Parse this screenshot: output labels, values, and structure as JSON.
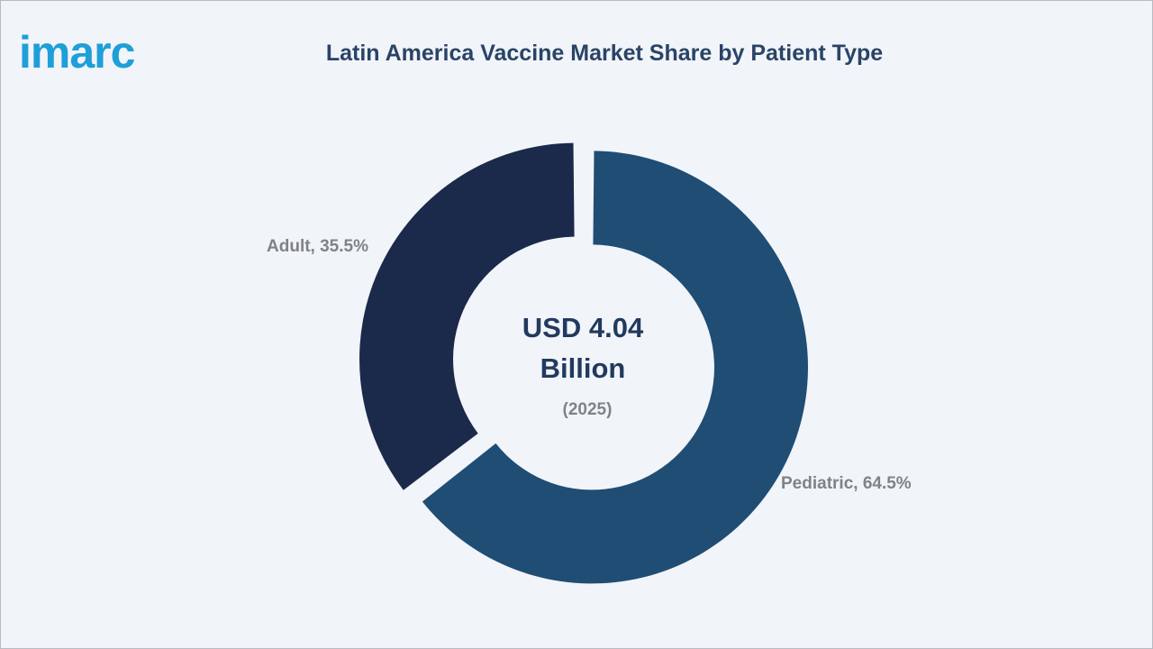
{
  "brand": {
    "logo_text": "imarc",
    "logo_color": "#1f9fd8"
  },
  "chart_data": {
    "type": "pie",
    "title": "Latin America Vaccine Market Share by Patient Type",
    "categories": [
      "Pediatric",
      "Adult"
    ],
    "values": [
      64.5,
      35.5
    ],
    "unit": "%",
    "labels": [
      "Pediatric, 64.5%",
      "Adult, 35.5%"
    ],
    "colors": [
      "#1f4d74",
      "#1b2a4a"
    ],
    "center_text": {
      "line1": "USD 4.04",
      "line2": "Billion",
      "line3": "(2025)"
    },
    "legend": "none"
  }
}
